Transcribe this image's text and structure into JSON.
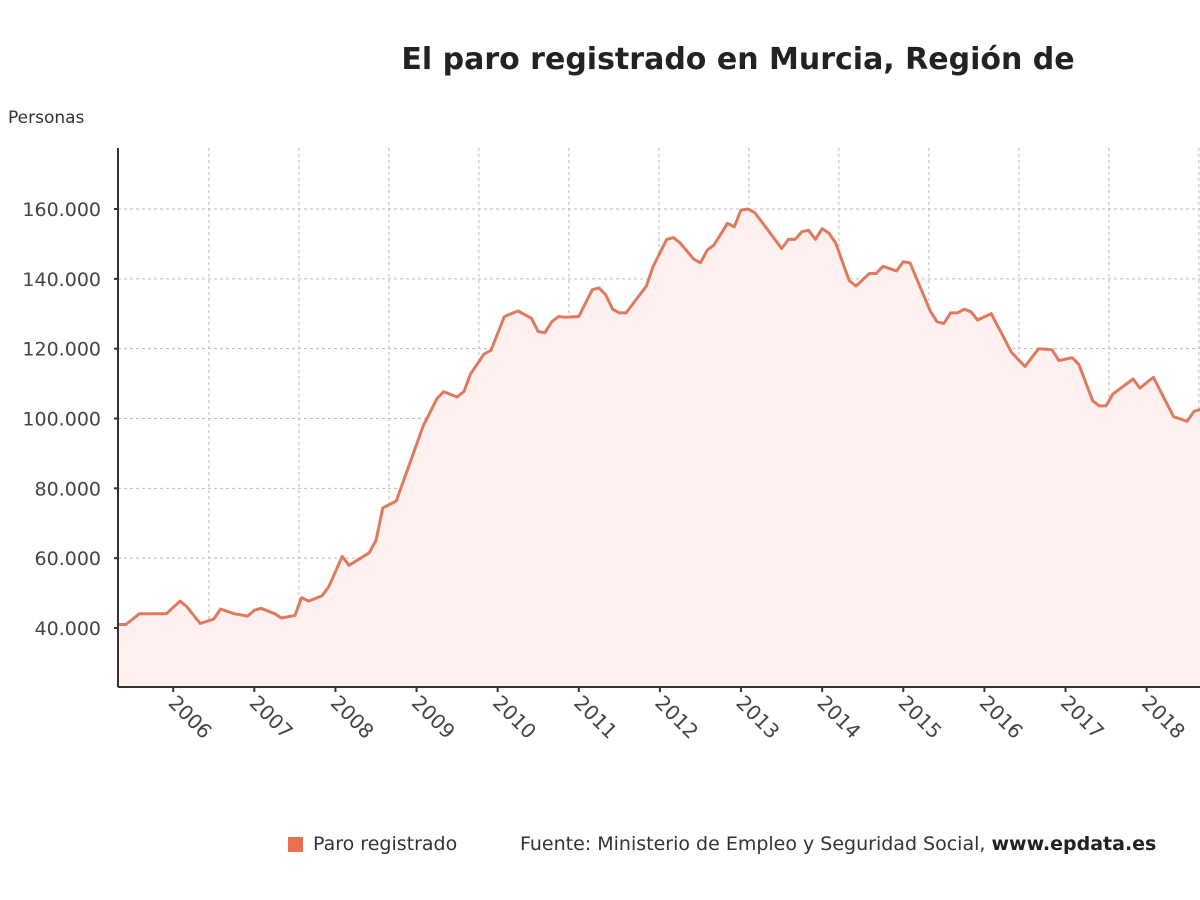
{
  "chart_data": {
    "type": "area",
    "title": "El paro registrado en Murcia, Región de",
    "ylabel": "Personas",
    "xlabel": "",
    "ylim": [
      23000,
      177000
    ],
    "yticks": [
      40000,
      60000,
      80000,
      100000,
      120000,
      140000,
      160000
    ],
    "ytick_labels": [
      "40.000",
      "60.000",
      "80.000",
      "100.000",
      "120.000",
      "140.000",
      "160.000"
    ],
    "xticks": [
      "2006",
      "2007",
      "2008",
      "2009",
      "2010",
      "2011",
      "2012",
      "2013",
      "2014",
      "2015",
      "2016",
      "2017",
      "2018"
    ],
    "grid": true,
    "legend_position": "bottom",
    "series": [
      {
        "name": "Paro registrado",
        "color": "#e07a5f",
        "fill": "#fdf0ee",
        "points": [
          [
            "2005-05",
            41000
          ],
          [
            "2005-06",
            41000
          ],
          [
            "2005-08",
            44100
          ],
          [
            "2005-12",
            44100
          ],
          [
            "2006-02",
            47700
          ],
          [
            "2006-03",
            46150
          ],
          [
            "2006-05",
            41300
          ],
          [
            "2006-07",
            42560
          ],
          [
            "2006-08",
            45440
          ],
          [
            "2006-10",
            44100
          ],
          [
            "2006-12",
            43400
          ],
          [
            "2007-01",
            45100
          ],
          [
            "2007-02",
            45640
          ],
          [
            "2007-04",
            44100
          ],
          [
            "2007-05",
            42870
          ],
          [
            "2007-07",
            43600
          ],
          [
            "2007-08",
            48700
          ],
          [
            "2007-09",
            47700
          ],
          [
            "2007-11",
            49200
          ],
          [
            "2007-12",
            51800
          ],
          [
            "2008-02",
            60500
          ],
          [
            "2008-03",
            57950
          ],
          [
            "2008-06",
            61540
          ],
          [
            "2008-07",
            65100
          ],
          [
            "2008-08",
            74400
          ],
          [
            "2008-10",
            76400
          ],
          [
            "2009-02",
            97950
          ],
          [
            "2009-04",
            105600
          ],
          [
            "2009-05",
            107700
          ],
          [
            "2009-07",
            106150
          ],
          [
            "2009-08",
            107700
          ],
          [
            "2009-09",
            112800
          ],
          [
            "2009-11",
            118500
          ],
          [
            "2009-12",
            119500
          ],
          [
            "2010-02",
            129200
          ],
          [
            "2010-04",
            130800
          ],
          [
            "2010-06",
            128700
          ],
          [
            "2010-07",
            124900
          ],
          [
            "2010-08",
            124600
          ],
          [
            "2010-09",
            127700
          ],
          [
            "2010-10",
            129200
          ],
          [
            "2010-11",
            129000
          ],
          [
            "2011-01",
            129200
          ],
          [
            "2011-03",
            136900
          ],
          [
            "2011-04",
            137400
          ],
          [
            "2011-05",
            135400
          ],
          [
            "2011-06",
            131300
          ],
          [
            "2011-07",
            130250
          ],
          [
            "2011-08",
            130250
          ],
          [
            "2011-11",
            137950
          ],
          [
            "2011-12",
            143600
          ],
          [
            "2012-02",
            151300
          ],
          [
            "2012-03",
            151800
          ],
          [
            "2012-04",
            150250
          ],
          [
            "2012-06",
            145640
          ],
          [
            "2012-07",
            144600
          ],
          [
            "2012-08",
            148200
          ],
          [
            "2012-09",
            149700
          ],
          [
            "2012-11",
            155900
          ],
          [
            "2012-12",
            154900
          ],
          [
            "2013-01",
            159700
          ],
          [
            "2013-02",
            160000
          ],
          [
            "2013-03",
            159000
          ],
          [
            "2013-05",
            153900
          ],
          [
            "2013-07",
            148700
          ],
          [
            "2013-08",
            151300
          ],
          [
            "2013-09",
            151300
          ],
          [
            "2013-10",
            153500
          ],
          [
            "2013-11",
            153900
          ],
          [
            "2013-12",
            151300
          ],
          [
            "2014-01",
            154400
          ],
          [
            "2014-02",
            153100
          ],
          [
            "2014-03",
            150250
          ],
          [
            "2014-05",
            139500
          ],
          [
            "2014-06",
            137950
          ],
          [
            "2014-08",
            141540
          ],
          [
            "2014-09",
            141540
          ],
          [
            "2014-10",
            143600
          ],
          [
            "2014-12",
            142250
          ],
          [
            "2015-01",
            144900
          ],
          [
            "2015-02",
            144600
          ],
          [
            "2015-05",
            130800
          ],
          [
            "2015-06",
            127700
          ],
          [
            "2015-07",
            127200
          ],
          [
            "2015-08",
            130250
          ],
          [
            "2015-09",
            130250
          ],
          [
            "2015-10",
            131300
          ],
          [
            "2015-11",
            130600
          ],
          [
            "2015-12",
            128200
          ],
          [
            "2016-02",
            130050
          ],
          [
            "2016-05",
            119000
          ],
          [
            "2016-07",
            114900
          ],
          [
            "2016-09",
            120000
          ],
          [
            "2016-11",
            119700
          ],
          [
            "2016-12",
            116600
          ],
          [
            "2017-02",
            117400
          ],
          [
            "2017-03",
            115400
          ],
          [
            "2017-05",
            105100
          ],
          [
            "2017-06",
            103600
          ],
          [
            "2017-07",
            103600
          ],
          [
            "2017-08",
            107000
          ],
          [
            "2017-11",
            111300
          ],
          [
            "2017-12",
            108700
          ],
          [
            "2018-02",
            111800
          ],
          [
            "2018-05",
            100500
          ],
          [
            "2018-07",
            99200
          ],
          [
            "2018-08",
            102050
          ],
          [
            "2018-09",
            102600
          ]
        ]
      }
    ]
  },
  "legend": {
    "label": "Paro registrado",
    "color": "#e8704f"
  },
  "source": {
    "prefix": "Fuente: Ministerio de Empleo y Seguridad Social,",
    "site": "www.epdata.es"
  }
}
